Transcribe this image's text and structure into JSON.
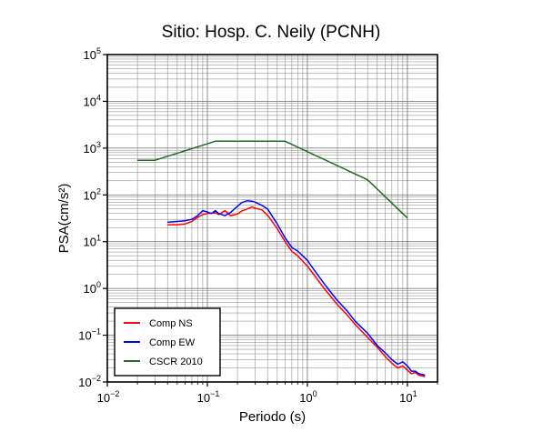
{
  "chart_data": {
    "type": "line",
    "title": "Sitio: Hosp. C. Neily (PCNH)",
    "xlabel": "Periodo (s)",
    "ylabel": "PSA(cm/s²)",
    "x_scale": "log",
    "y_scale": "log",
    "xlim": [
      0.01,
      20
    ],
    "ylim": [
      0.01,
      100000
    ],
    "grid": true,
    "legend_position": "bottom-left",
    "x_ticks": [
      {
        "base": "10",
        "exp": "−2",
        "value": 0.01
      },
      {
        "base": "10",
        "exp": "−1",
        "value": 0.1
      },
      {
        "base": "10",
        "exp": "0",
        "value": 1
      },
      {
        "base": "10",
        "exp": "1",
        "value": 10
      }
    ],
    "y_ticks": [
      {
        "base": "10",
        "exp": "−2",
        "value": 0.01
      },
      {
        "base": "10",
        "exp": "−1",
        "value": 0.1
      },
      {
        "base": "10",
        "exp": "0",
        "value": 1
      },
      {
        "base": "10",
        "exp": "1",
        "value": 10
      },
      {
        "base": "10",
        "exp": "2",
        "value": 100
      },
      {
        "base": "10",
        "exp": "3",
        "value": 1000
      },
      {
        "base": "10",
        "exp": "4",
        "value": 10000
      },
      {
        "base": "10",
        "exp": "5",
        "value": 100000
      }
    ],
    "series": [
      {
        "name": "Comp NS",
        "color": "#ff0000",
        "x": [
          0.04,
          0.05,
          0.06,
          0.07,
          0.08,
          0.09,
          0.1,
          0.11,
          0.12,
          0.13,
          0.15,
          0.17,
          0.2,
          0.22,
          0.25,
          0.28,
          0.3,
          0.35,
          0.4,
          0.5,
          0.6,
          0.7,
          0.8,
          1.0,
          1.2,
          1.5,
          2.0,
          2.5,
          3.0,
          4.0,
          5.0,
          6.0,
          7.0,
          8.0,
          9.0,
          10.0,
          11.0,
          12.0,
          13.0,
          15.0
        ],
        "y": [
          23,
          23,
          24,
          27,
          33,
          38,
          40,
          41,
          42,
          38,
          46,
          36,
          39,
          45,
          50,
          55,
          52,
          48,
          37,
          19,
          10,
          6.2,
          5.0,
          3.0,
          1.8,
          0.95,
          0.45,
          0.27,
          0.17,
          0.09,
          0.055,
          0.035,
          0.025,
          0.02,
          0.022,
          0.018,
          0.015,
          0.016,
          0.014,
          0.013
        ]
      },
      {
        "name": "Comp EW",
        "color": "#0000ff",
        "x": [
          0.04,
          0.05,
          0.06,
          0.07,
          0.08,
          0.09,
          0.1,
          0.11,
          0.12,
          0.13,
          0.15,
          0.17,
          0.2,
          0.22,
          0.25,
          0.28,
          0.3,
          0.35,
          0.4,
          0.5,
          0.6,
          0.7,
          0.8,
          1.0,
          1.2,
          1.5,
          2.0,
          2.5,
          3.0,
          4.0,
          5.0,
          6.0,
          7.0,
          8.0,
          9.0,
          10.0,
          11.0,
          12.0,
          13.0,
          15.0
        ],
        "y": [
          26,
          27,
          28,
          30,
          36,
          46,
          43,
          40,
          46,
          40,
          36,
          42,
          57,
          68,
          75,
          73,
          70,
          60,
          50,
          24,
          12,
          7.5,
          6.3,
          4.0,
          2.3,
          1.2,
          0.55,
          0.33,
          0.2,
          0.11,
          0.06,
          0.042,
          0.03,
          0.024,
          0.027,
          0.022,
          0.017,
          0.017,
          0.015,
          0.014
        ]
      },
      {
        "name": "CSCR 2010",
        "color": "#1f6b1f",
        "x": [
          0.02,
          0.03,
          0.12,
          0.6,
          4.0,
          10.0
        ],
        "y": [
          550,
          550,
          1400,
          1400,
          210,
          32
        ]
      }
    ]
  }
}
